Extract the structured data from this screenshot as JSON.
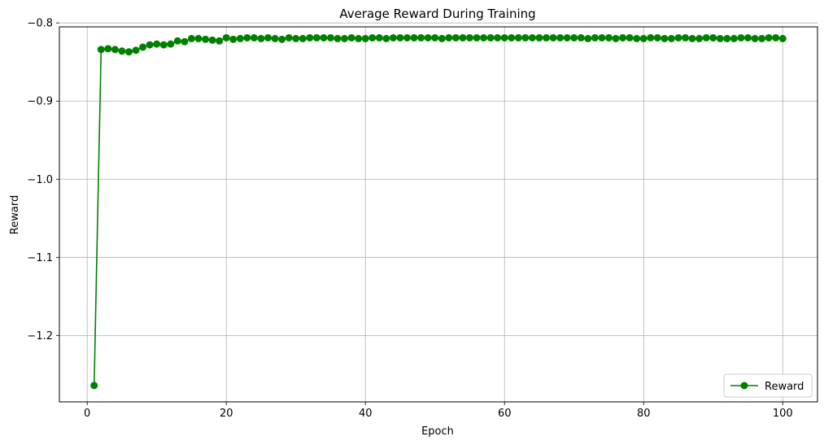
{
  "chart_data": {
    "type": "line",
    "title": "Average Reward During Training",
    "xlabel": "Epoch",
    "ylabel": "Reward",
    "xlim": [
      -4,
      105
    ],
    "ylim": [
      -1.285,
      -0.805
    ],
    "xticks": [
      0,
      20,
      40,
      60,
      80,
      100
    ],
    "yticks": [
      -0.8,
      -0.9,
      -1.0,
      -1.1,
      -1.2
    ],
    "xtick_labels": [
      "0",
      "20",
      "40",
      "60",
      "80",
      "100"
    ],
    "ytick_labels": [
      "−0.8",
      "−0.9",
      "−1.0",
      "−1.1",
      "−1.2"
    ],
    "grid": true,
    "legend_position": "bottom-right",
    "series": [
      {
        "name": "Reward",
        "color": "#008000",
        "marker": "circle",
        "x": [
          1,
          2,
          3,
          4,
          5,
          6,
          7,
          8,
          9,
          10,
          11,
          12,
          13,
          14,
          15,
          16,
          17,
          18,
          19,
          20,
          21,
          22,
          23,
          24,
          25,
          26,
          27,
          28,
          29,
          30,
          31,
          32,
          33,
          34,
          35,
          36,
          37,
          38,
          39,
          40,
          41,
          42,
          43,
          44,
          45,
          46,
          47,
          48,
          49,
          50,
          51,
          52,
          53,
          54,
          55,
          56,
          57,
          58,
          59,
          60,
          61,
          62,
          63,
          64,
          65,
          66,
          67,
          68,
          69,
          70,
          71,
          72,
          73,
          74,
          75,
          76,
          77,
          78,
          79,
          80,
          81,
          82,
          83,
          84,
          85,
          86,
          87,
          88,
          89,
          90,
          91,
          92,
          93,
          94,
          95,
          96,
          97,
          98,
          99,
          100
        ],
        "y": [
          -1.264,
          -0.834,
          -0.833,
          -0.834,
          -0.836,
          -0.837,
          -0.835,
          -0.831,
          -0.828,
          -0.827,
          -0.828,
          -0.827,
          -0.823,
          -0.824,
          -0.82,
          -0.82,
          -0.821,
          -0.822,
          -0.823,
          -0.819,
          -0.821,
          -0.82,
          -0.819,
          -0.819,
          -0.82,
          -0.819,
          -0.82,
          -0.821,
          -0.819,
          -0.82,
          -0.82,
          -0.819,
          -0.819,
          -0.819,
          -0.819,
          -0.82,
          -0.82,
          -0.819,
          -0.82,
          -0.82,
          -0.819,
          -0.819,
          -0.82,
          -0.819,
          -0.819,
          -0.819,
          -0.819,
          -0.819,
          -0.819,
          -0.819,
          -0.82,
          -0.819,
          -0.819,
          -0.819,
          -0.819,
          -0.819,
          -0.819,
          -0.819,
          -0.819,
          -0.819,
          -0.819,
          -0.819,
          -0.819,
          -0.819,
          -0.819,
          -0.819,
          -0.819,
          -0.819,
          -0.819,
          -0.819,
          -0.819,
          -0.82,
          -0.819,
          -0.819,
          -0.819,
          -0.82,
          -0.819,
          -0.819,
          -0.82,
          -0.82,
          -0.819,
          -0.819,
          -0.82,
          -0.82,
          -0.819,
          -0.819,
          -0.82,
          -0.82,
          -0.819,
          -0.819,
          -0.82,
          -0.82,
          -0.82,
          -0.819,
          -0.819,
          -0.82,
          -0.82,
          -0.819,
          -0.819,
          -0.82
        ]
      }
    ]
  }
}
